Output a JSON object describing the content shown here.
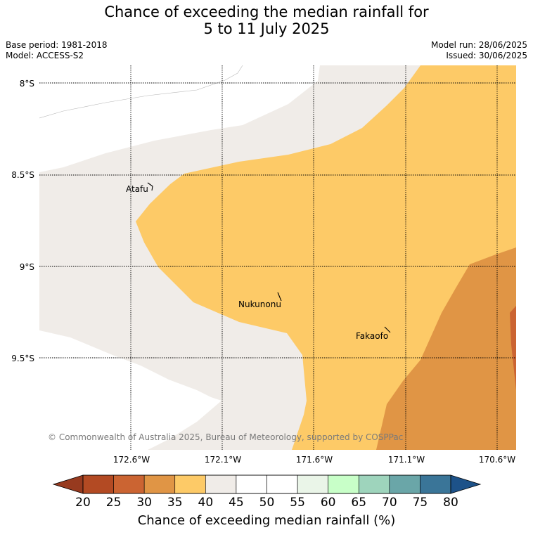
{
  "title": {
    "line1": "Chance of exceeding the median rainfall for",
    "line2": "5 to 11 July 2025"
  },
  "meta": {
    "base_period": "Base period: 1981-2018",
    "model": "Model: ACCESS-S2",
    "model_run": "Model run: 28/06/2025",
    "issued": "Issued: 30/06/2025"
  },
  "map": {
    "lon_ticks": [
      "172.6°W",
      "172.1°W",
      "171.6°W",
      "171.1°W",
      "170.6°W"
    ],
    "lat_ticks": [
      "8°S",
      "8.5°S",
      "9°S",
      "9.5°S"
    ],
    "places": [
      "Atafu",
      "Nukunonu",
      "Fakaofo"
    ],
    "copyright": "© Commonwealth of Australia 2025, Bureau of Meteorology, supported by COSPPac",
    "colors": {
      "land_boundary": "#f0ece8",
      "c30_35": "#e09545",
      "c35_40": "#fdca67",
      "c40_45": "#f0ece8",
      "c25_30": "#cb6432"
    }
  },
  "colorbar": {
    "ticks": [
      "20",
      "25",
      "30",
      "35",
      "40",
      "45",
      "50",
      "55",
      "60",
      "65",
      "70",
      "75",
      "80"
    ],
    "colors": [
      "#b34a23",
      "#cb6432",
      "#e09545",
      "#fdca67",
      "#f0ece8",
      "#ffffff",
      "#ffffff",
      "#eaf5e8",
      "#c8ffc8",
      "#9ed4bc",
      "#6aa6a8",
      "#3a7598"
    ],
    "under_color": "#973a1f",
    "over_color": "#1d5289",
    "label": "Chance of exceeding median rainfall (%)"
  }
}
